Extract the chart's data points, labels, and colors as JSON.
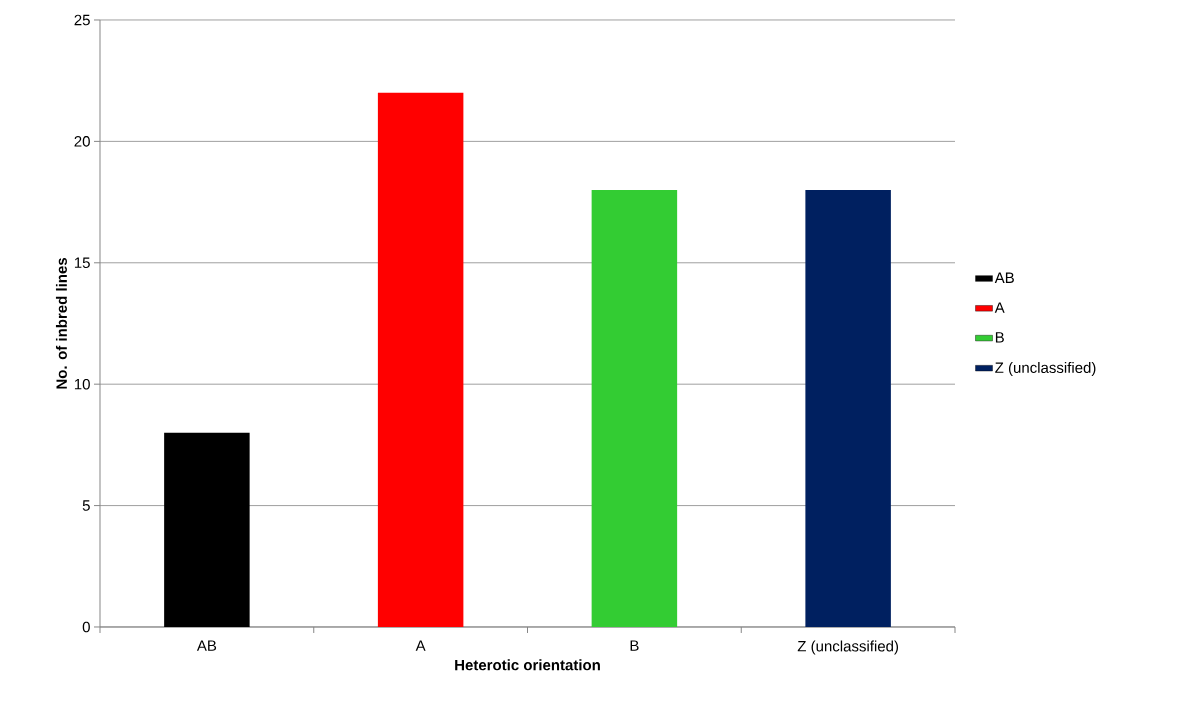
{
  "chart_data": {
    "type": "bar",
    "xlabel": "Heterotic orientation",
    "ylabel": "No. of inbred lines",
    "categories": [
      "AB",
      "A",
      "B",
      "Z (unclassified)"
    ],
    "series": [
      {
        "name": "AB",
        "color": "#000000",
        "values": [
          8,
          null,
          null,
          null
        ]
      },
      {
        "name": "A",
        "color": "#ff0000",
        "values": [
          null,
          22,
          null,
          null
        ]
      },
      {
        "name": "B",
        "color": "#33cc33",
        "values": [
          null,
          null,
          18,
          null
        ]
      },
      {
        "name": "Z (unclassified)",
        "color": "#002060",
        "values": [
          null,
          null,
          null,
          18
        ]
      }
    ],
    "ylim": [
      0,
      25
    ],
    "yticks": [
      0,
      5,
      10,
      15,
      20,
      25
    ],
    "grid": "y",
    "legend": "right"
  }
}
